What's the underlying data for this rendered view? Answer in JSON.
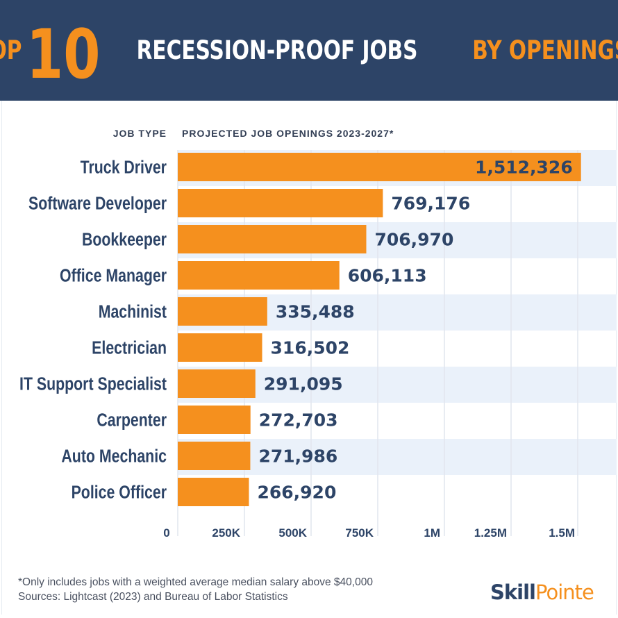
{
  "title": {
    "part1": "TOP",
    "number": "10",
    "part2": "RECESSION-PROOF JOBS",
    "part3": "BY OPENINGS"
  },
  "colors": {
    "header_bg": "#2d4467",
    "accent": "#f5901e",
    "label": "#2d4467",
    "band": "#eaf1fa"
  },
  "chart_data": {
    "type": "bar",
    "orientation": "horizontal",
    "category_header": "JOB TYPE",
    "value_header": "PROJECTED JOB OPENINGS 2023-2027*",
    "categories": [
      "Truck Driver",
      "Software Developer",
      "Bookkeeper",
      "Office Manager",
      "Machinist",
      "Electrician",
      "IT Support Specialist",
      "Carpenter",
      "Auto Mechanic",
      "Police Officer"
    ],
    "values": [
      1512326,
      769176,
      706970,
      606113,
      335488,
      316502,
      291095,
      272703,
      271986,
      266920
    ],
    "value_labels": [
      "1,512,326",
      "769,176",
      "706,970",
      "606,113",
      "335,488",
      "316,502",
      "291,095",
      "272,703",
      "271,986",
      "266,920"
    ],
    "xlim": [
      0,
      1500000
    ],
    "xticks": [
      0,
      250000,
      500000,
      750000,
      1000000,
      1250000,
      1500000
    ],
    "xtick_labels": [
      "0",
      "250K",
      "500K",
      "750K",
      "1M",
      "1.25M",
      "1.5M"
    ],
    "grid": true,
    "bar_color": "#f5901e"
  },
  "footnote": {
    "line1": "*Only includes jobs with a weighted average median salary above $40,000",
    "line2": "Sources: Lightcast (2023) and Bureau of Labor Statistics"
  },
  "logo": {
    "part1": "Skill",
    "part2": "Pointe"
  }
}
